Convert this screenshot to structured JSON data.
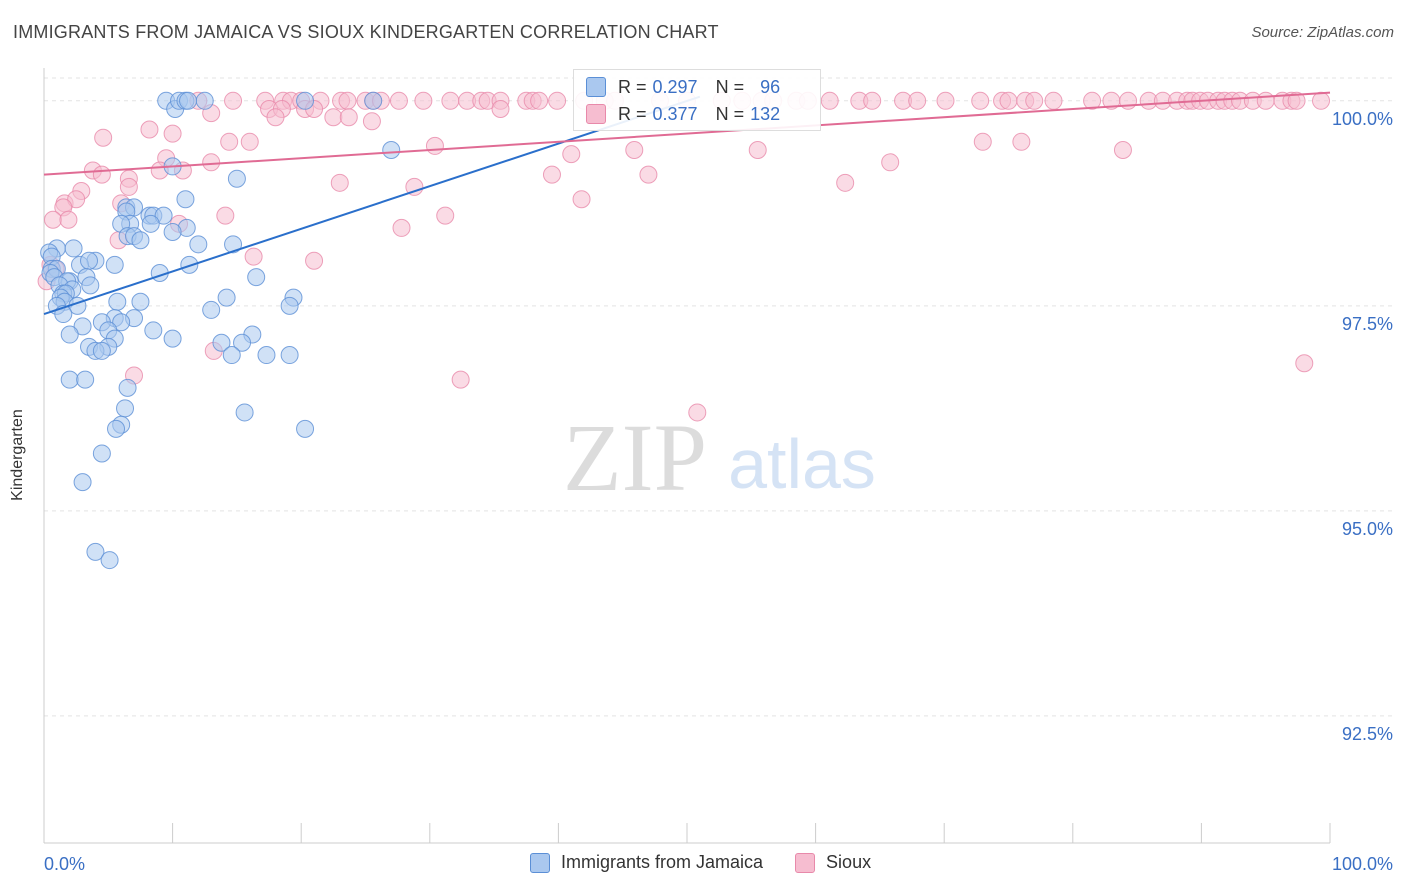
{
  "title": "IMMIGRANTS FROM JAMAICA VS SIOUX KINDERGARTEN CORRELATION CHART",
  "source": "Source: ZipAtlas.com",
  "watermark": {
    "zip": "ZIP",
    "atlas": "atlas"
  },
  "colors": {
    "blue_fill": "#aac8ef",
    "blue_stroke": "#5b8fd6",
    "blue_line": "#2a6fcb",
    "pink_fill": "#f6bdd0",
    "pink_stroke": "#e889aa",
    "pink_line": "#e06b94",
    "tick_label": "#3a6fc4",
    "grid": "#e3e3e3"
  },
  "stats": {
    "r_label": "R = ",
    "n_label": "N = ",
    "rows": [
      {
        "r": "0.297",
        "n": "96"
      },
      {
        "r": "0.377",
        "n": "132"
      }
    ]
  },
  "chart_data": {
    "type": "scatter",
    "title": "IMMIGRANTS FROM JAMAICA VS SIOUX KINDERGARTEN CORRELATION CHART",
    "xlabel": "",
    "ylabel": "Kindergarten",
    "xlim": [
      0,
      100
    ],
    "ylim": [
      90.95,
      100.4
    ],
    "x_tick_labels": [
      {
        "value": 0,
        "label": "0.0%"
      },
      {
        "value": 100,
        "label": "100.0%"
      }
    ],
    "y_ticks": [
      {
        "value": 100.0,
        "label": "100.0%"
      },
      {
        "value": 97.5,
        "label": "97.5%"
      },
      {
        "value": 95.0,
        "label": "95.0%"
      },
      {
        "value": 92.5,
        "label": "92.5%"
      }
    ],
    "x_minor_ticks": [
      10,
      20,
      30,
      40,
      50,
      60,
      70,
      80,
      90,
      100
    ],
    "grid": true,
    "legend_position": "bottom",
    "series": [
      {
        "name": "Immigrants from Jamaica",
        "color": "#aac8ef",
        "r": 0.297,
        "n": 96,
        "trend": [
          [
            0,
            97.4
          ],
          [
            51,
            100.05
          ]
        ],
        "points": [
          [
            9.5,
            100.0
          ],
          [
            10.2,
            99.9
          ],
          [
            10.5,
            100.0
          ],
          [
            11.0,
            100.0
          ],
          [
            11.2,
            100.0
          ],
          [
            12.5,
            100.0
          ],
          [
            20.3,
            100.0
          ],
          [
            25.6,
            100.0
          ],
          [
            10.0,
            99.2
          ],
          [
            27.0,
            99.4
          ],
          [
            15.0,
            99.05
          ],
          [
            11.0,
            98.8
          ],
          [
            6.4,
            98.7
          ],
          [
            7.0,
            98.7
          ],
          [
            6.4,
            98.65
          ],
          [
            8.2,
            98.6
          ],
          [
            8.5,
            98.6
          ],
          [
            9.3,
            98.6
          ],
          [
            6.7,
            98.5
          ],
          [
            8.3,
            98.5
          ],
          [
            6.0,
            98.5
          ],
          [
            11.1,
            98.45
          ],
          [
            10.0,
            98.4
          ],
          [
            6.5,
            98.35
          ],
          [
            7.0,
            98.35
          ],
          [
            7.5,
            98.3
          ],
          [
            12.0,
            98.25
          ],
          [
            14.7,
            98.25
          ],
          [
            1.0,
            98.2
          ],
          [
            2.3,
            98.2
          ],
          [
            0.4,
            98.15
          ],
          [
            0.6,
            98.1
          ],
          [
            4.0,
            98.05
          ],
          [
            2.8,
            98.0
          ],
          [
            3.5,
            98.05
          ],
          [
            5.5,
            98.0
          ],
          [
            11.3,
            98.0
          ],
          [
            0.6,
            97.95
          ],
          [
            1.0,
            97.95
          ],
          [
            0.5,
            97.9
          ],
          [
            9.0,
            97.9
          ],
          [
            3.3,
            97.85
          ],
          [
            0.8,
            97.85
          ],
          [
            16.5,
            97.85
          ],
          [
            2.0,
            97.8
          ],
          [
            1.8,
            97.8
          ],
          [
            1.2,
            97.75
          ],
          [
            3.6,
            97.75
          ],
          [
            2.2,
            97.7
          ],
          [
            1.5,
            97.65
          ],
          [
            1.7,
            97.65
          ],
          [
            14.2,
            97.6
          ],
          [
            19.4,
            97.6
          ],
          [
            1.3,
            97.6
          ],
          [
            1.6,
            97.55
          ],
          [
            5.7,
            97.55
          ],
          [
            7.5,
            97.55
          ],
          [
            19.1,
            97.5
          ],
          [
            1.0,
            97.5
          ],
          [
            2.6,
            97.5
          ],
          [
            13.0,
            97.45
          ],
          [
            1.5,
            97.4
          ],
          [
            5.5,
            97.35
          ],
          [
            7.0,
            97.35
          ],
          [
            4.5,
            97.3
          ],
          [
            6.0,
            97.3
          ],
          [
            3.0,
            97.25
          ],
          [
            5.0,
            97.2
          ],
          [
            8.5,
            97.2
          ],
          [
            2.0,
            97.15
          ],
          [
            16.2,
            97.15
          ],
          [
            5.5,
            97.1
          ],
          [
            10.0,
            97.1
          ],
          [
            13.8,
            97.05
          ],
          [
            15.4,
            97.05
          ],
          [
            3.5,
            97.0
          ],
          [
            5.0,
            97.0
          ],
          [
            4.0,
            96.95
          ],
          [
            4.5,
            96.95
          ],
          [
            14.6,
            96.9
          ],
          [
            17.3,
            96.9
          ],
          [
            19.1,
            96.9
          ],
          [
            2.0,
            96.6
          ],
          [
            3.2,
            96.6
          ],
          [
            6.5,
            96.5
          ],
          [
            6.3,
            96.25
          ],
          [
            15.6,
            96.2
          ],
          [
            6.0,
            96.05
          ],
          [
            5.6,
            96.0
          ],
          [
            20.3,
            96.0
          ],
          [
            4.5,
            95.7
          ],
          [
            3.0,
            95.35
          ],
          [
            4.0,
            94.5
          ],
          [
            5.1,
            94.4
          ]
        ]
      },
      {
        "name": "Sioux",
        "color": "#f6bdd0",
        "r": 0.377,
        "n": 132,
        "trend": [
          [
            0,
            99.1
          ],
          [
            100,
            100.1
          ]
        ],
        "points": [
          [
            12.0,
            100.0
          ],
          [
            14.7,
            100.0
          ],
          [
            17.2,
            100.0
          ],
          [
            18.6,
            100.0
          ],
          [
            19.2,
            100.0
          ],
          [
            20.0,
            100.0
          ],
          [
            21.5,
            100.0
          ],
          [
            23.1,
            100.0
          ],
          [
            23.6,
            100.0
          ],
          [
            25.0,
            100.0
          ],
          [
            25.6,
            100.0
          ],
          [
            26.2,
            100.0
          ],
          [
            27.6,
            100.0
          ],
          [
            29.5,
            100.0
          ],
          [
            31.6,
            100.0
          ],
          [
            32.9,
            100.0
          ],
          [
            34.0,
            100.0
          ],
          [
            34.5,
            100.0
          ],
          [
            35.5,
            100.0
          ],
          [
            37.5,
            100.0
          ],
          [
            38.0,
            100.0
          ],
          [
            38.5,
            100.0
          ],
          [
            39.9,
            100.0
          ],
          [
            42.0,
            100.0
          ],
          [
            43.6,
            100.0
          ],
          [
            44.4,
            100.0
          ],
          [
            47.9,
            100.0
          ],
          [
            50.0,
            100.0
          ],
          [
            52.7,
            100.0
          ],
          [
            54.3,
            100.0
          ],
          [
            55.8,
            100.0
          ],
          [
            56.7,
            100.0
          ],
          [
            58.5,
            100.0
          ],
          [
            59.4,
            100.0
          ],
          [
            61.1,
            100.0
          ],
          [
            63.4,
            100.0
          ],
          [
            64.4,
            100.0
          ],
          [
            66.8,
            100.0
          ],
          [
            67.9,
            100.0
          ],
          [
            70.1,
            100.0
          ],
          [
            72.8,
            100.0
          ],
          [
            74.5,
            100.0
          ],
          [
            75.0,
            100.0
          ],
          [
            76.3,
            100.0
          ],
          [
            77.0,
            100.0
          ],
          [
            78.5,
            100.0
          ],
          [
            81.5,
            100.0
          ],
          [
            83.0,
            100.0
          ],
          [
            84.3,
            100.0
          ],
          [
            85.9,
            100.0
          ],
          [
            87.0,
            100.0
          ],
          [
            88.1,
            100.0
          ],
          [
            88.9,
            100.0
          ],
          [
            89.3,
            100.0
          ],
          [
            89.9,
            100.0
          ],
          [
            90.5,
            100.0
          ],
          [
            91.3,
            100.0
          ],
          [
            91.8,
            100.0
          ],
          [
            92.4,
            100.0
          ],
          [
            93.0,
            100.0
          ],
          [
            94.0,
            100.0
          ],
          [
            95.0,
            100.0
          ],
          [
            96.3,
            100.0
          ],
          [
            97.0,
            100.0
          ],
          [
            97.4,
            100.0
          ],
          [
            99.3,
            100.0
          ],
          [
            17.5,
            99.9
          ],
          [
            18.5,
            99.9
          ],
          [
            20.3,
            99.9
          ],
          [
            21.0,
            99.9
          ],
          [
            35.5,
            99.9
          ],
          [
            13.0,
            99.85
          ],
          [
            18.0,
            99.8
          ],
          [
            22.5,
            99.8
          ],
          [
            23.7,
            99.8
          ],
          [
            25.5,
            99.75
          ],
          [
            8.2,
            99.65
          ],
          [
            10.0,
            99.6
          ],
          [
            4.6,
            99.55
          ],
          [
            14.4,
            99.5
          ],
          [
            16.0,
            99.5
          ],
          [
            30.4,
            99.45
          ],
          [
            45.9,
            99.4
          ],
          [
            41.0,
            99.35
          ],
          [
            55.5,
            99.4
          ],
          [
            73.0,
            99.5
          ],
          [
            76.0,
            99.5
          ],
          [
            83.9,
            99.4
          ],
          [
            9.5,
            99.3
          ],
          [
            13.0,
            99.25
          ],
          [
            65.8,
            99.25
          ],
          [
            3.8,
            99.15
          ],
          [
            9.0,
            99.15
          ],
          [
            10.8,
            99.15
          ],
          [
            4.5,
            99.1
          ],
          [
            6.6,
            99.05
          ],
          [
            39.5,
            99.1
          ],
          [
            47.0,
            99.1
          ],
          [
            23.0,
            99.0
          ],
          [
            28.8,
            98.95
          ],
          [
            62.3,
            99.0
          ],
          [
            6.6,
            98.95
          ],
          [
            2.9,
            98.9
          ],
          [
            1.6,
            98.75
          ],
          [
            2.5,
            98.8
          ],
          [
            6.0,
            98.75
          ],
          [
            41.8,
            98.8
          ],
          [
            1.5,
            98.7
          ],
          [
            14.1,
            98.6
          ],
          [
            31.2,
            98.6
          ],
          [
            0.7,
            98.55
          ],
          [
            1.9,
            98.55
          ],
          [
            10.5,
            98.5
          ],
          [
            27.8,
            98.45
          ],
          [
            5.8,
            98.3
          ],
          [
            16.3,
            98.1
          ],
          [
            21.0,
            98.05
          ],
          [
            0.5,
            98.0
          ],
          [
            0.9,
            97.95
          ],
          [
            0.2,
            97.8
          ],
          [
            13.2,
            96.95
          ],
          [
            7.0,
            96.65
          ],
          [
            32.4,
            96.6
          ],
          [
            50.8,
            96.2
          ],
          [
            98.0,
            96.8
          ]
        ]
      }
    ]
  }
}
